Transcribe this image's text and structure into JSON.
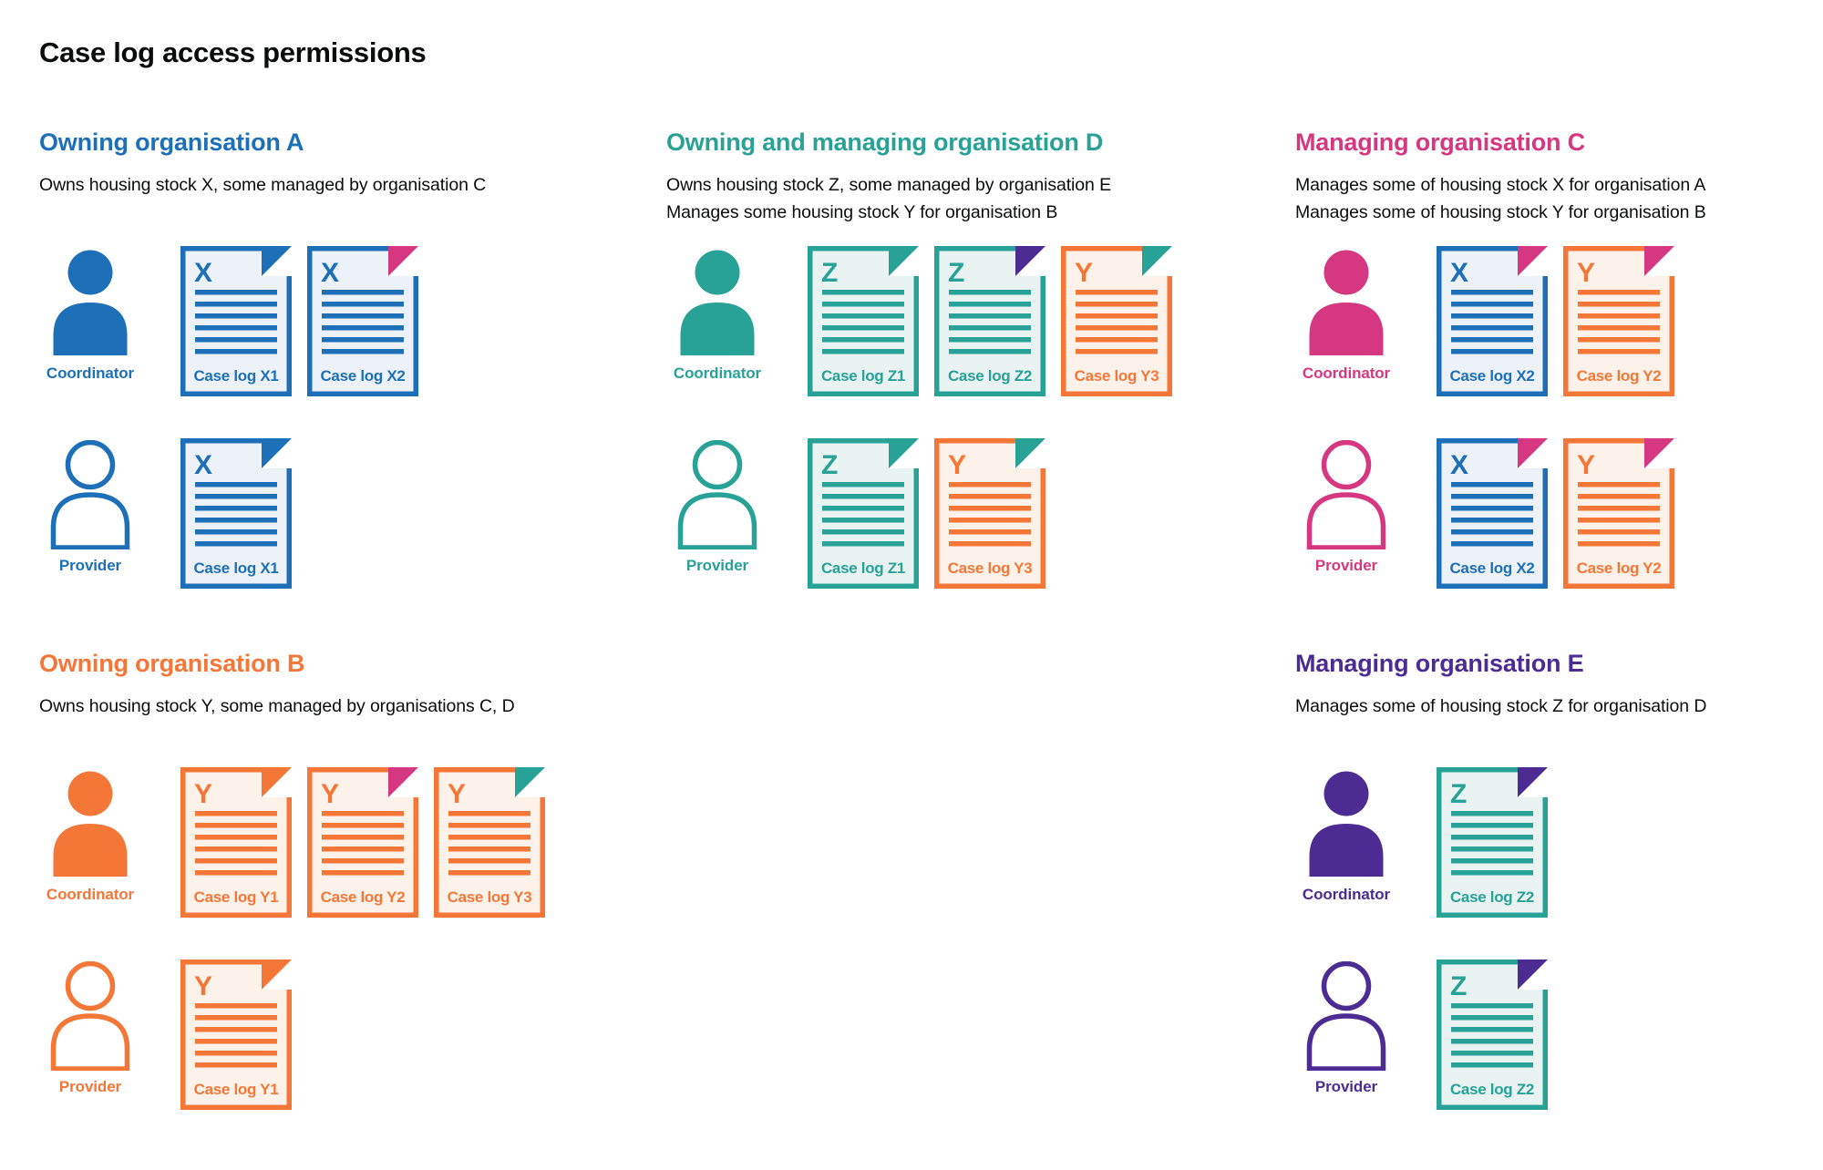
{
  "page_title": "Case log access permissions",
  "colors": {
    "text": "#0b0c0c",
    "blue": {
      "main": "#1d70b8",
      "tint": "#edf2f9"
    },
    "teal": {
      "main": "#28a197",
      "tint": "#e9f4f2"
    },
    "orange": {
      "main": "#f47738",
      "tint": "#fdf2ea"
    },
    "pink": {
      "main": "#d53880",
      "tint": "#fbeaf2"
    },
    "purple": {
      "main": "#4c2c92",
      "tint": "#ece8f4"
    }
  },
  "sections": [
    {
      "id": "owning-organisation-a",
      "title": "Owning organisation A",
      "color": "blue",
      "description": [
        "Owns housing stock X, some managed by organisation C"
      ],
      "rows": [
        {
          "role": "Coordinator",
          "person_style": "filled",
          "docs": [
            {
              "letter": "X",
              "label": "Case log X1",
              "color": "blue",
              "fold": "blue"
            },
            {
              "letter": "X",
              "label": "Case log X2",
              "color": "blue",
              "fold": "pink"
            }
          ]
        },
        {
          "role": "Provider",
          "person_style": "outline",
          "docs": [
            {
              "letter": "X",
              "label": "Case log X1",
              "color": "blue",
              "fold": "blue"
            }
          ]
        }
      ]
    },
    {
      "id": "owning-and-managing-organisation-d",
      "title": "Owning and managing organisation D",
      "color": "teal",
      "description": [
        "Owns housing stock Z, some managed by organisation E",
        "Manages some housing stock Y for organisation B"
      ],
      "rows": [
        {
          "role": "Coordinator",
          "person_style": "filled",
          "docs": [
            {
              "letter": "Z",
              "label": "Case log Z1",
              "color": "teal",
              "fold": "teal"
            },
            {
              "letter": "Z",
              "label": "Case log Z2",
              "color": "teal",
              "fold": "purple"
            },
            {
              "letter": "Y",
              "label": "Case log Y3",
              "color": "orange",
              "fold": "teal"
            }
          ]
        },
        {
          "role": "Provider",
          "person_style": "outline",
          "docs": [
            {
              "letter": "Z",
              "label": "Case log Z1",
              "color": "teal",
              "fold": "teal"
            },
            {
              "letter": "Y",
              "label": "Case log Y3",
              "color": "orange",
              "fold": "teal"
            }
          ]
        }
      ]
    },
    {
      "id": "managing-organisation-c",
      "title": "Managing organisation C",
      "color": "pink",
      "description": [
        "Manages some of housing stock X for organisation A",
        "Manages some of housing stock Y for organisation B"
      ],
      "rows": [
        {
          "role": "Coordinator",
          "person_style": "filled",
          "docs": [
            {
              "letter": "X",
              "label": "Case log X2",
              "color": "blue",
              "fold": "pink"
            },
            {
              "letter": "Y",
              "label": "Case log Y2",
              "color": "orange",
              "fold": "pink"
            }
          ]
        },
        {
          "role": "Provider",
          "person_style": "outline",
          "docs": [
            {
              "letter": "X",
              "label": "Case log X2",
              "color": "blue",
              "fold": "pink"
            },
            {
              "letter": "Y",
              "label": "Case log Y2",
              "color": "orange",
              "fold": "pink"
            }
          ]
        }
      ]
    },
    {
      "id": "owning-organisation-b",
      "title": "Owning organisation B",
      "color": "orange",
      "description": [
        "Owns housing stock Y, some managed by organisations C, D"
      ],
      "rows": [
        {
          "role": "Coordinator",
          "person_style": "filled",
          "docs": [
            {
              "letter": "Y",
              "label": "Case log Y1",
              "color": "orange",
              "fold": "orange"
            },
            {
              "letter": "Y",
              "label": "Case log Y2",
              "color": "orange",
              "fold": "pink"
            },
            {
              "letter": "Y",
              "label": "Case log Y3",
              "color": "orange",
              "fold": "teal"
            }
          ]
        },
        {
          "role": "Provider",
          "person_style": "outline",
          "docs": [
            {
              "letter": "Y",
              "label": "Case log Y1",
              "color": "orange",
              "fold": "orange"
            }
          ]
        }
      ]
    },
    {
      "id": "managing-organisation-e",
      "title": "Managing organisation E",
      "color": "purple",
      "description": [
        "Manages some of housing stock Z for organisation D"
      ],
      "rows": [
        {
          "role": "Coordinator",
          "person_style": "filled",
          "docs": [
            {
              "letter": "Z",
              "label": "Case log Z2",
              "color": "teal",
              "fold": "purple"
            }
          ]
        },
        {
          "role": "Provider",
          "person_style": "outline",
          "docs": [
            {
              "letter": "Z",
              "label": "Case log Z2",
              "color": "teal",
              "fold": "purple"
            }
          ]
        }
      ]
    }
  ]
}
